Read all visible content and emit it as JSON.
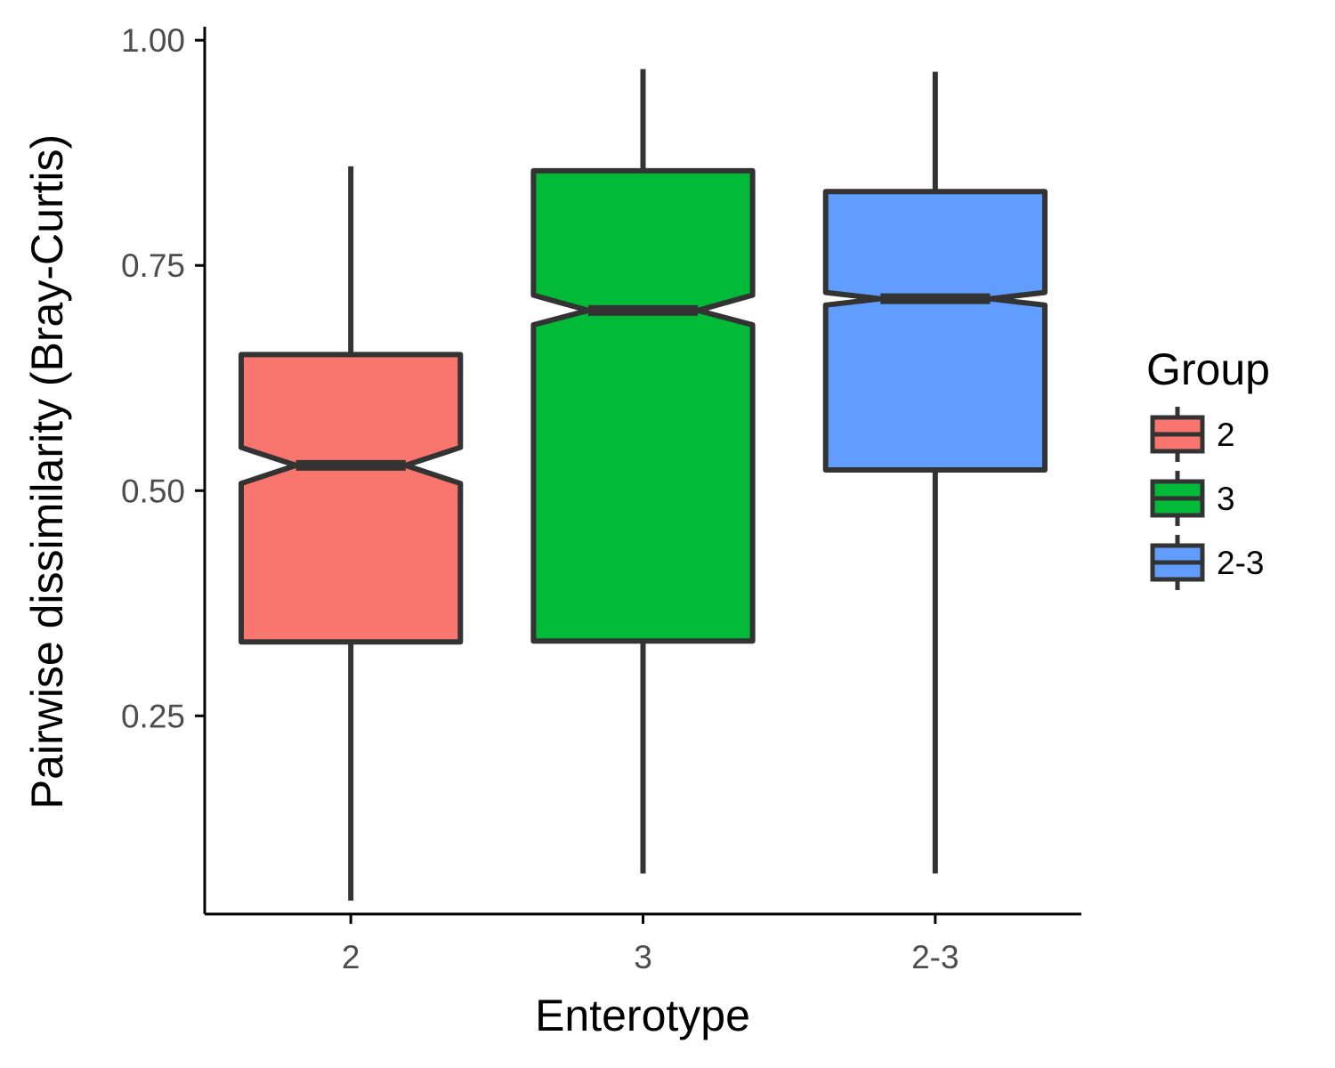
{
  "chart_data": {
    "type": "boxplot",
    "notched": true,
    "xlabel": "Enterotype",
    "ylabel": "Pairwise dissimilarity (Bray-Curtis)",
    "categories": [
      "2",
      "3",
      "2-3"
    ],
    "y_ticks": [
      "0.25",
      "0.50",
      "0.75",
      "1.00"
    ],
    "ylim": [
      0.03,
      1.015
    ],
    "series": [
      {
        "category": "2",
        "color": "#F8766D",
        "min": 0.045,
        "q1": 0.332,
        "median": 0.528,
        "q3": 0.651,
        "max": 0.86,
        "notch_low": 0.508,
        "notch_high": 0.548
      },
      {
        "category": "3",
        "color": "#00BA38",
        "min": 0.075,
        "q1": 0.333,
        "median": 0.7,
        "q3": 0.855,
        "max": 0.968,
        "notch_low": 0.684,
        "notch_high": 0.717
      },
      {
        "category": "2-3",
        "color": "#619CFF",
        "min": 0.075,
        "q1": 0.523,
        "median": 0.713,
        "q3": 0.832,
        "max": 0.965,
        "notch_low": 0.706,
        "notch_high": 0.72
      }
    ],
    "legend": {
      "title": "Group",
      "position": "right",
      "items": [
        {
          "label": "2",
          "color": "#F8766D"
        },
        {
          "label": "3",
          "color": "#00BA38"
        },
        {
          "label": "2-3",
          "color": "#619CFF"
        }
      ]
    },
    "grid": false
  }
}
